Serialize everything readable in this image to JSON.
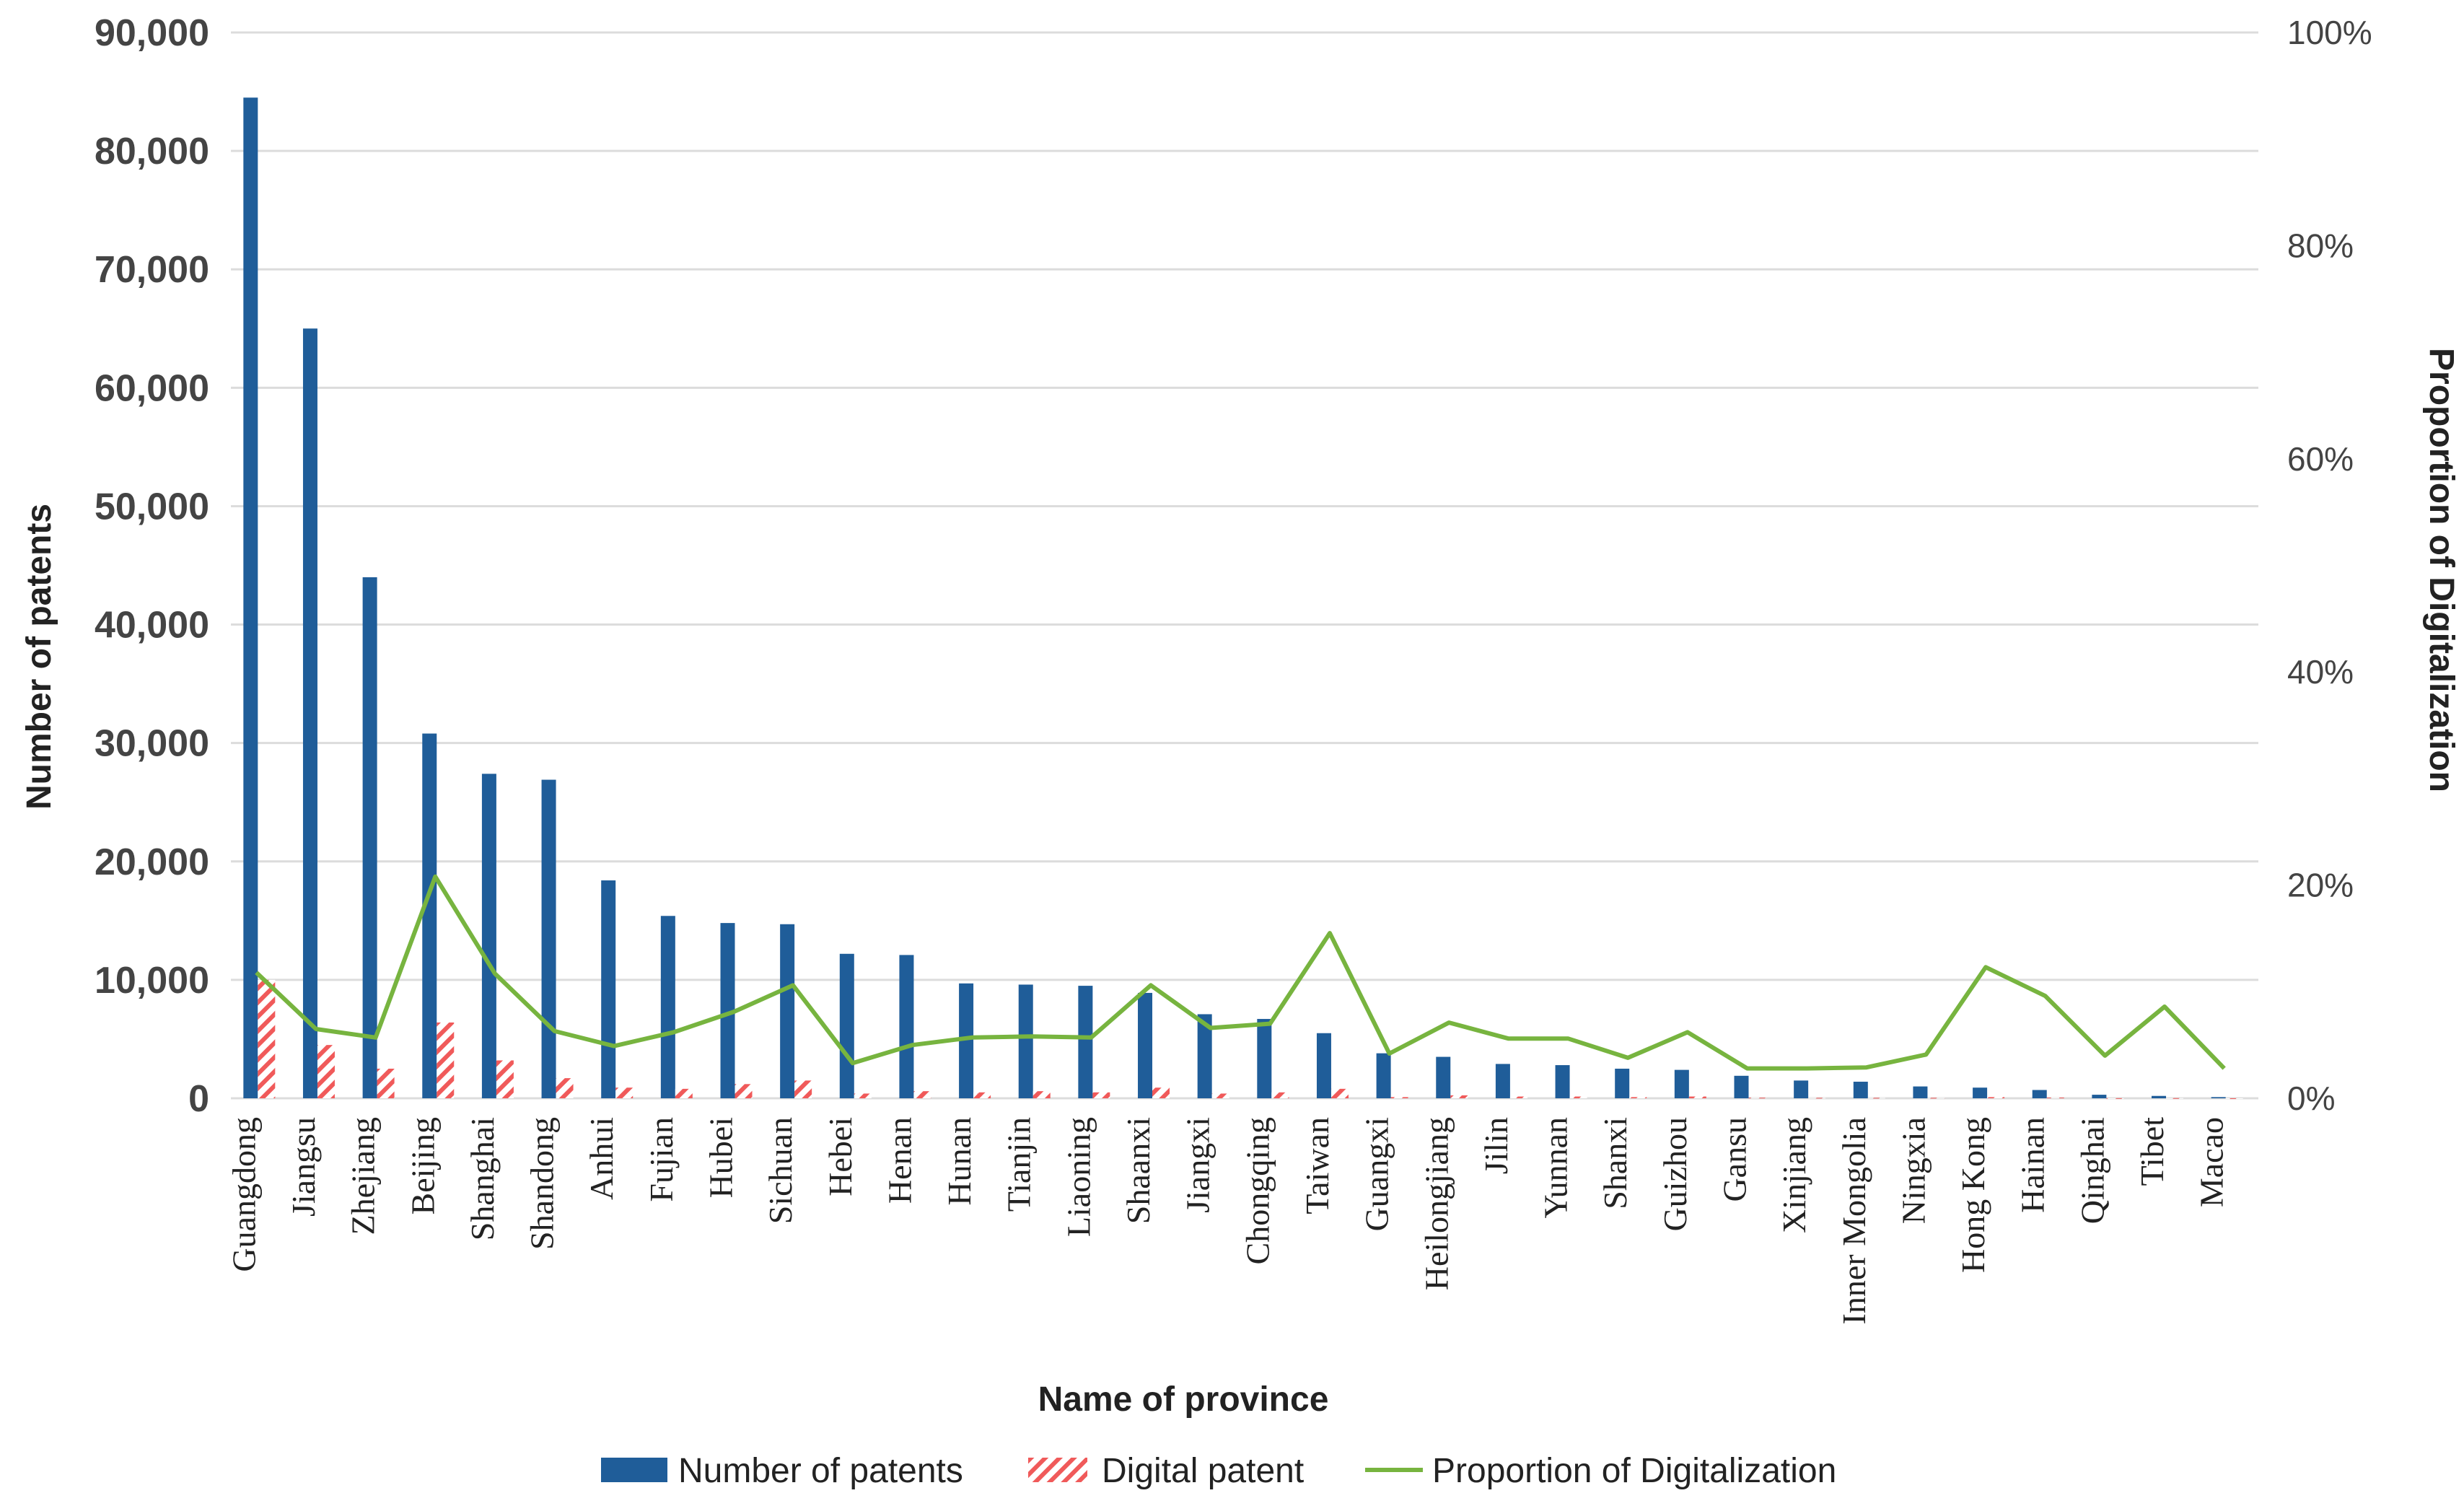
{
  "chart_data": {
    "type": "bar",
    "title": "",
    "xlabel": "Name of province",
    "ylabel": "Number of patents",
    "y2label": "Proportion of Digitalization",
    "ylim": [
      0,
      90000
    ],
    "y2lim": [
      0,
      100
    ],
    "y_ticks": [
      "0",
      "10,000",
      "20,000",
      "30,000",
      "40,000",
      "50,000",
      "60,000",
      "70,000",
      "80,000",
      "90,000"
    ],
    "y2_ticks": [
      "0%",
      "20%",
      "40%",
      "60%",
      "80%",
      "100%"
    ],
    "grid": true,
    "legend_position": "bottom",
    "categories": [
      "Guangdong",
      "Jiangsu",
      "Zhejiang",
      "Beijing",
      "Shanghai",
      "Shandong",
      "Anhui",
      "Fujian",
      "Hubei",
      "Sichuan",
      "Hebei",
      "Henan",
      "Hunan",
      "Tianjin",
      "Liaoning",
      "Shaanxi",
      "Jiangxi",
      "Chongqing",
      "Taiwan",
      "Guangxi",
      "Heilongjiang",
      "Jilin",
      "Yunnan",
      "Shanxi",
      "Guizhou",
      "Gansu",
      "Xinjiang",
      "Inner Mongolia",
      "Ningxia",
      "Hong Kong",
      "Hainan",
      "Qinghai",
      "Tibet",
      "Macao"
    ],
    "series": [
      {
        "name": "Number of patents",
        "kind": "bar",
        "axis": "left",
        "values": [
          84500,
          65000,
          44000,
          30800,
          27400,
          26900,
          18400,
          15400,
          14800,
          14700,
          12200,
          12100,
          9700,
          9600,
          9500,
          8900,
          7100,
          6700,
          5500,
          3800,
          3500,
          2900,
          2800,
          2500,
          2400,
          1900,
          1500,
          1400,
          1000,
          900,
          700,
          300,
          200,
          100
        ]
      },
      {
        "name": "Digital patent",
        "kind": "bar",
        "axis": "left",
        "values": [
          10000,
          4500,
          2500,
          6400,
          3200,
          1700,
          900,
          800,
          1200,
          1500,
          400,
          600,
          500,
          600,
          500,
          900,
          400,
          500,
          800,
          100,
          250,
          150,
          150,
          100,
          150,
          50,
          40,
          40,
          40,
          100,
          60,
          10,
          15,
          3
        ]
      },
      {
        "name": "Proportion of Digitalization",
        "kind": "line",
        "axis": "right",
        "values": [
          11.8,
          6.5,
          5.7,
          20.8,
          11.7,
          6.3,
          4.9,
          6.2,
          8.1,
          10.6,
          3.3,
          5.0,
          5.7,
          5.8,
          5.7,
          10.6,
          6.6,
          7.0,
          15.5,
          4.2,
          7.1,
          5.6,
          5.6,
          3.8,
          6.2,
          2.8,
          2.8,
          2.9,
          4.1,
          12.3,
          9.6,
          4.0,
          8.6,
          2.8
        ]
      }
    ]
  },
  "colors": {
    "bar": "#1F5D99",
    "digital": "#F05A5A",
    "line": "#77B43F",
    "grid": "#DCDCDC"
  }
}
